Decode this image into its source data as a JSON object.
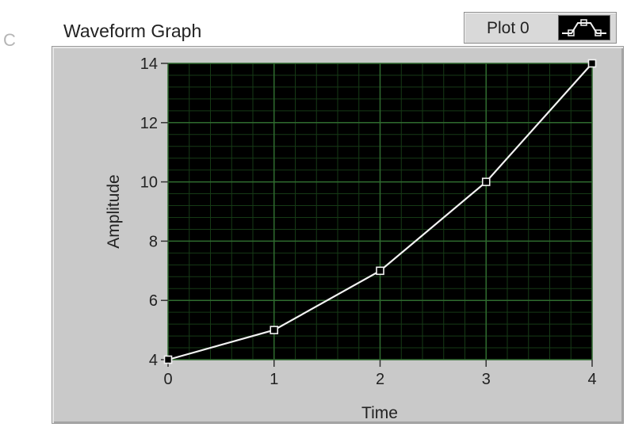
{
  "graph": {
    "label": "Waveform Graph",
    "legend": {
      "plot_name": "Plot 0",
      "swatch_icon": "line-with-square-markers-icon"
    },
    "edge_glyph": "C"
  },
  "colors": {
    "plot_background": "#000000",
    "grid_major": "#2f6b2f",
    "grid_minor": "#163a16",
    "trace": "#f2f2f2",
    "frame": "#c9c9c9"
  },
  "chart_data": {
    "type": "line",
    "title": "Waveform Graph",
    "xlabel": "Time",
    "ylabel": "Amplitude",
    "xlim": [
      0,
      4
    ],
    "ylim": [
      4,
      14
    ],
    "x_ticks": [
      0,
      1,
      2,
      3,
      4
    ],
    "y_ticks": [
      4,
      6,
      8,
      10,
      12,
      14
    ],
    "grid": true,
    "legend_position": "top-right",
    "series": [
      {
        "name": "Plot 0",
        "x": [
          0,
          1,
          2,
          3,
          4
        ],
        "values": [
          4,
          5,
          7,
          10,
          14
        ],
        "marker": "square"
      }
    ]
  }
}
